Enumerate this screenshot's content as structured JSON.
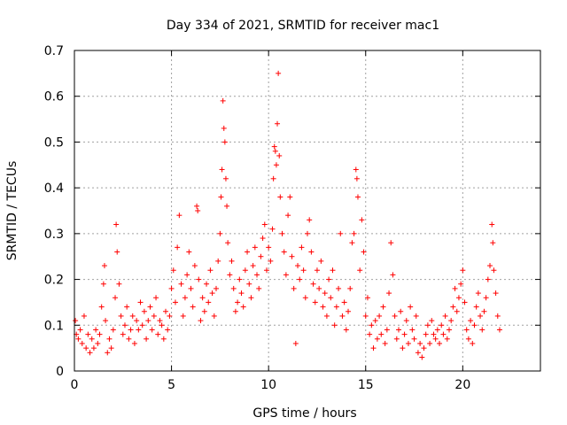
{
  "chart_data": {
    "type": "scatter",
    "title": "Day 334 of 2021, SRMTID for receiver mac1",
    "xlabel": "GPS time / hours",
    "ylabel": "SRMTID / TECUs",
    "xlim": [
      0,
      24
    ],
    "ylim": [
      0,
      0.7
    ],
    "xticks": [
      0,
      5,
      10,
      15,
      20
    ],
    "xtick_labels": [
      "0",
      "5",
      "10",
      "15",
      "20"
    ],
    "yticks": [
      0,
      0.1,
      0.2,
      0.3,
      0.4,
      0.5,
      0.6,
      0.7
    ],
    "ytick_labels": [
      "0",
      "0.1",
      "0.2",
      "0.3",
      "0.4",
      "0.5",
      "0.6",
      "0.7"
    ],
    "grid": true,
    "marker": "+",
    "color": "#ff0000",
    "series": [
      {
        "name": "mac1",
        "points": [
          [
            0.05,
            0.11
          ],
          [
            0.1,
            0.08
          ],
          [
            0.2,
            0.07
          ],
          [
            0.3,
            0.09
          ],
          [
            0.4,
            0.06
          ],
          [
            0.5,
            0.12
          ],
          [
            0.6,
            0.05
          ],
          [
            0.7,
            0.08
          ],
          [
            0.8,
            0.04
          ],
          [
            0.9,
            0.07
          ],
          [
            1.0,
            0.05
          ],
          [
            1.1,
            0.09
          ],
          [
            1.2,
            0.06
          ],
          [
            1.3,
            0.08
          ],
          [
            1.4,
            0.14
          ],
          [
            1.5,
            0.19
          ],
          [
            1.55,
            0.23
          ],
          [
            1.6,
            0.11
          ],
          [
            1.7,
            0.04
          ],
          [
            1.8,
            0.07
          ],
          [
            1.9,
            0.05
          ],
          [
            2.0,
            0.09
          ],
          [
            2.1,
            0.16
          ],
          [
            2.15,
            0.32
          ],
          [
            2.2,
            0.26
          ],
          [
            2.3,
            0.19
          ],
          [
            2.4,
            0.12
          ],
          [
            2.5,
            0.08
          ],
          [
            2.6,
            0.1
          ],
          [
            2.7,
            0.14
          ],
          [
            2.8,
            0.07
          ],
          [
            2.9,
            0.09
          ],
          [
            3.0,
            0.12
          ],
          [
            3.1,
            0.06
          ],
          [
            3.2,
            0.11
          ],
          [
            3.3,
            0.09
          ],
          [
            3.4,
            0.15
          ],
          [
            3.5,
            0.1
          ],
          [
            3.6,
            0.13
          ],
          [
            3.7,
            0.07
          ],
          [
            3.8,
            0.11
          ],
          [
            3.9,
            0.14
          ],
          [
            4.0,
            0.09
          ],
          [
            4.1,
            0.12
          ],
          [
            4.2,
            0.16
          ],
          [
            4.3,
            0.08
          ],
          [
            4.4,
            0.11
          ],
          [
            4.5,
            0.1
          ],
          [
            4.6,
            0.07
          ],
          [
            4.7,
            0.13
          ],
          [
            4.8,
            0.09
          ],
          [
            4.9,
            0.12
          ],
          [
            5.0,
            0.18
          ],
          [
            5.1,
            0.22
          ],
          [
            5.2,
            0.15
          ],
          [
            5.3,
            0.27
          ],
          [
            5.4,
            0.34
          ],
          [
            5.5,
            0.19
          ],
          [
            5.6,
            0.12
          ],
          [
            5.7,
            0.16
          ],
          [
            5.8,
            0.21
          ],
          [
            5.9,
            0.26
          ],
          [
            6.0,
            0.18
          ],
          [
            6.1,
            0.14
          ],
          [
            6.2,
            0.23
          ],
          [
            6.3,
            0.36
          ],
          [
            6.35,
            0.35
          ],
          [
            6.4,
            0.2
          ],
          [
            6.5,
            0.11
          ],
          [
            6.6,
            0.16
          ],
          [
            6.7,
            0.13
          ],
          [
            6.8,
            0.19
          ],
          [
            6.9,
            0.15
          ],
          [
            7.0,
            0.22
          ],
          [
            7.1,
            0.17
          ],
          [
            7.2,
            0.12
          ],
          [
            7.3,
            0.18
          ],
          [
            7.4,
            0.24
          ],
          [
            7.5,
            0.3
          ],
          [
            7.55,
            0.38
          ],
          [
            7.6,
            0.44
          ],
          [
            7.65,
            0.59
          ],
          [
            7.7,
            0.53
          ],
          [
            7.75,
            0.5
          ],
          [
            7.8,
            0.42
          ],
          [
            7.85,
            0.36
          ],
          [
            7.9,
            0.28
          ],
          [
            8.0,
            0.21
          ],
          [
            8.1,
            0.24
          ],
          [
            8.2,
            0.18
          ],
          [
            8.3,
            0.13
          ],
          [
            8.4,
            0.15
          ],
          [
            8.5,
            0.2
          ],
          [
            8.6,
            0.17
          ],
          [
            8.7,
            0.14
          ],
          [
            8.8,
            0.22
          ],
          [
            8.9,
            0.26
          ],
          [
            9.0,
            0.19
          ],
          [
            9.1,
            0.16
          ],
          [
            9.2,
            0.23
          ],
          [
            9.3,
            0.27
          ],
          [
            9.4,
            0.21
          ],
          [
            9.5,
            0.18
          ],
          [
            9.6,
            0.25
          ],
          [
            9.7,
            0.29
          ],
          [
            9.8,
            0.32
          ],
          [
            9.9,
            0.22
          ],
          [
            10.0,
            0.27
          ],
          [
            10.1,
            0.24
          ],
          [
            10.2,
            0.31
          ],
          [
            10.25,
            0.42
          ],
          [
            10.3,
            0.49
          ],
          [
            10.35,
            0.48
          ],
          [
            10.4,
            0.45
          ],
          [
            10.45,
            0.54
          ],
          [
            10.5,
            0.65
          ],
          [
            10.55,
            0.47
          ],
          [
            10.6,
            0.38
          ],
          [
            10.7,
            0.3
          ],
          [
            10.8,
            0.26
          ],
          [
            10.9,
            0.21
          ],
          [
            11.0,
            0.34
          ],
          [
            11.1,
            0.38
          ],
          [
            11.2,
            0.25
          ],
          [
            11.3,
            0.18
          ],
          [
            11.4,
            0.06
          ],
          [
            11.5,
            0.23
          ],
          [
            11.6,
            0.2
          ],
          [
            11.7,
            0.27
          ],
          [
            11.8,
            0.22
          ],
          [
            11.9,
            0.16
          ],
          [
            12.0,
            0.3
          ],
          [
            12.1,
            0.33
          ],
          [
            12.2,
            0.26
          ],
          [
            12.3,
            0.19
          ],
          [
            12.4,
            0.15
          ],
          [
            12.5,
            0.22
          ],
          [
            12.6,
            0.18
          ],
          [
            12.7,
            0.24
          ],
          [
            12.8,
            0.14
          ],
          [
            12.9,
            0.17
          ],
          [
            13.0,
            0.12
          ],
          [
            13.1,
            0.2
          ],
          [
            13.2,
            0.16
          ],
          [
            13.3,
            0.22
          ],
          [
            13.4,
            0.1
          ],
          [
            13.5,
            0.14
          ],
          [
            13.6,
            0.18
          ],
          [
            13.7,
            0.3
          ],
          [
            13.8,
            0.12
          ],
          [
            13.9,
            0.15
          ],
          [
            14.0,
            0.09
          ],
          [
            14.1,
            0.13
          ],
          [
            14.2,
            0.18
          ],
          [
            14.3,
            0.28
          ],
          [
            14.4,
            0.3
          ],
          [
            14.5,
            0.44
          ],
          [
            14.55,
            0.42
          ],
          [
            14.6,
            0.38
          ],
          [
            14.7,
            0.22
          ],
          [
            14.8,
            0.33
          ],
          [
            14.9,
            0.26
          ],
          [
            15.0,
            0.12
          ],
          [
            15.1,
            0.16
          ],
          [
            15.2,
            0.08
          ],
          [
            15.3,
            0.1
          ],
          [
            15.4,
            0.05
          ],
          [
            15.5,
            0.11
          ],
          [
            15.6,
            0.07
          ],
          [
            15.7,
            0.12
          ],
          [
            15.8,
            0.08
          ],
          [
            15.9,
            0.14
          ],
          [
            16.0,
            0.06
          ],
          [
            16.1,
            0.09
          ],
          [
            16.2,
            0.17
          ],
          [
            16.3,
            0.28
          ],
          [
            16.4,
            0.21
          ],
          [
            16.5,
            0.12
          ],
          [
            16.6,
            0.07
          ],
          [
            16.7,
            0.09
          ],
          [
            16.8,
            0.13
          ],
          [
            16.9,
            0.05
          ],
          [
            17.0,
            0.08
          ],
          [
            17.1,
            0.11
          ],
          [
            17.2,
            0.06
          ],
          [
            17.3,
            0.14
          ],
          [
            17.4,
            0.09
          ],
          [
            17.5,
            0.07
          ],
          [
            17.6,
            0.12
          ],
          [
            17.7,
            0.04
          ],
          [
            17.8,
            0.06
          ],
          [
            17.9,
            0.03
          ],
          [
            18.0,
            0.05
          ],
          [
            18.1,
            0.08
          ],
          [
            18.2,
            0.1
          ],
          [
            18.3,
            0.06
          ],
          [
            18.4,
            0.11
          ],
          [
            18.5,
            0.08
          ],
          [
            18.6,
            0.07
          ],
          [
            18.7,
            0.09
          ],
          [
            18.8,
            0.06
          ],
          [
            18.9,
            0.1
          ],
          [
            19.0,
            0.08
          ],
          [
            19.1,
            0.12
          ],
          [
            19.2,
            0.07
          ],
          [
            19.3,
            0.09
          ],
          [
            19.4,
            0.11
          ],
          [
            19.5,
            0.14
          ],
          [
            19.6,
            0.18
          ],
          [
            19.7,
            0.13
          ],
          [
            19.8,
            0.16
          ],
          [
            19.9,
            0.19
          ],
          [
            20.0,
            0.22
          ],
          [
            20.1,
            0.15
          ],
          [
            20.2,
            0.09
          ],
          [
            20.3,
            0.07
          ],
          [
            20.4,
            0.11
          ],
          [
            20.5,
            0.06
          ],
          [
            20.6,
            0.1
          ],
          [
            20.7,
            0.14
          ],
          [
            20.8,
            0.17
          ],
          [
            20.9,
            0.12
          ],
          [
            21.0,
            0.09
          ],
          [
            21.1,
            0.13
          ],
          [
            21.2,
            0.16
          ],
          [
            21.3,
            0.2
          ],
          [
            21.4,
            0.23
          ],
          [
            21.5,
            0.32
          ],
          [
            21.55,
            0.28
          ],
          [
            21.6,
            0.22
          ],
          [
            21.7,
            0.17
          ],
          [
            21.8,
            0.12
          ],
          [
            21.9,
            0.09
          ]
        ]
      }
    ]
  }
}
